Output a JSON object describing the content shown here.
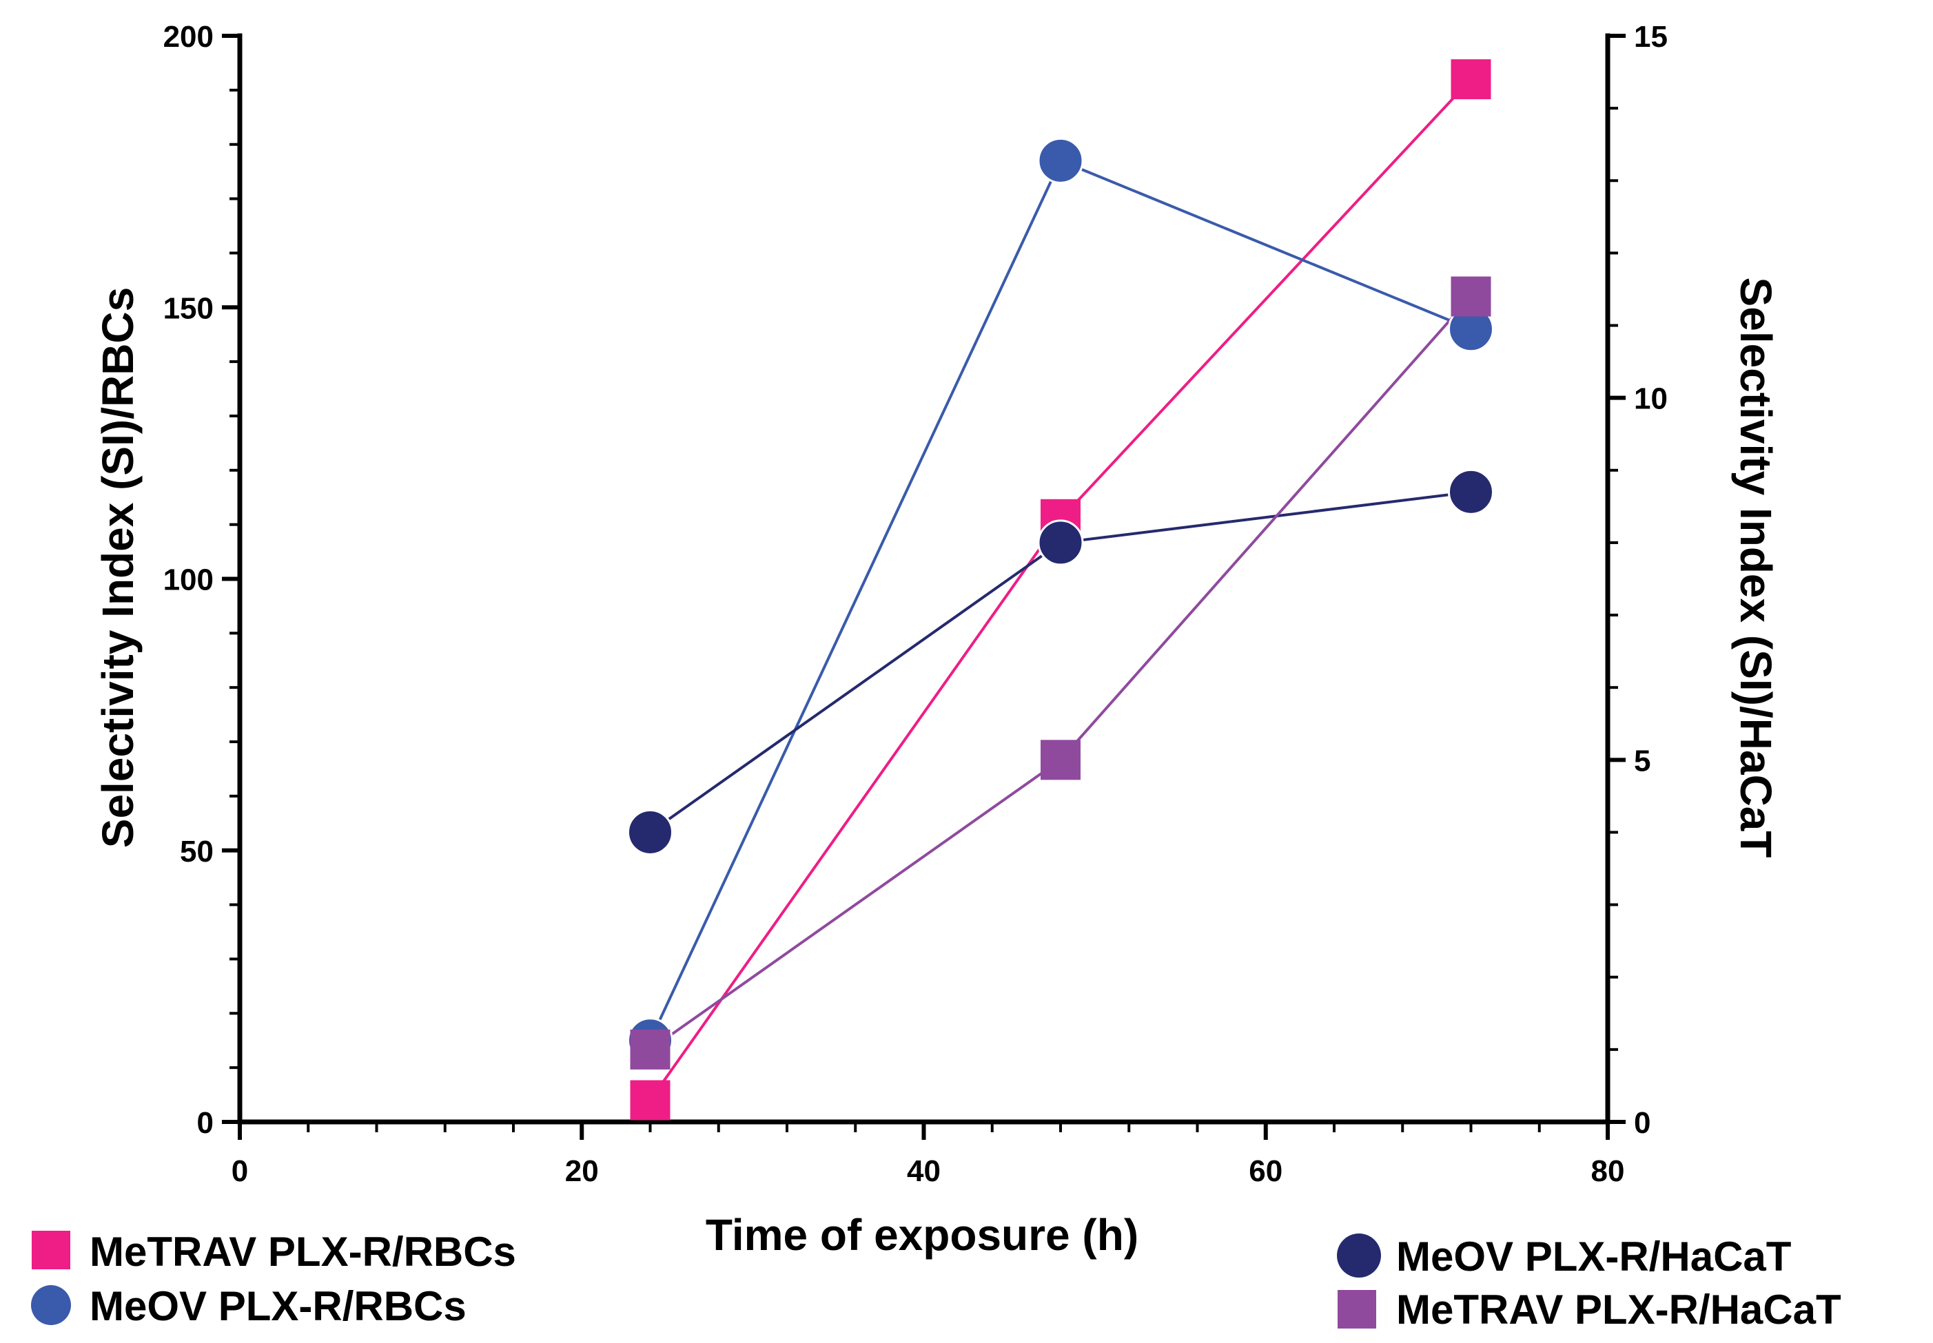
{
  "chart_data": {
    "type": "line",
    "title": "",
    "xlabel": "Time of exposure (h)",
    "ylabel_left": "Selectivity Index (SI)/RBCs",
    "ylabel_right": "Selectivity Index (SI)/HaCaT",
    "xlim": [
      0,
      80
    ],
    "ylim_left": [
      0,
      200
    ],
    "ylim_right": [
      0,
      15
    ],
    "x_ticks": [
      "0",
      "20",
      "40",
      "60",
      "80"
    ],
    "y_left_ticks": [
      "0",
      "50",
      "100",
      "150",
      "200"
    ],
    "y_right_ticks": [
      "0",
      "5",
      "10",
      "15"
    ],
    "grid": false,
    "x": [
      24,
      48,
      72
    ],
    "series": [
      {
        "name": "MeTRAV PLX-R/RBCs",
        "axis": "left",
        "marker": "square",
        "color": "#ee1e86",
        "values": [
          4,
          111,
          192
        ]
      },
      {
        "name": "MeOV PLX-R/RBCs",
        "axis": "left",
        "marker": "circle",
        "color": "#3a5bab",
        "values": [
          15,
          177,
          146
        ]
      },
      {
        "name": "MeOV PLX-R/HaCaT",
        "axis": "right",
        "marker": "circle",
        "color": "#252a6e",
        "values": [
          4.0,
          8.0,
          8.7
        ]
      },
      {
        "name": "MeTRAV PLX-R/HaCaT",
        "axis": "right",
        "marker": "square",
        "color": "#8f4a9e",
        "values": [
          1.0,
          5.0,
          11.4
        ]
      }
    ]
  }
}
